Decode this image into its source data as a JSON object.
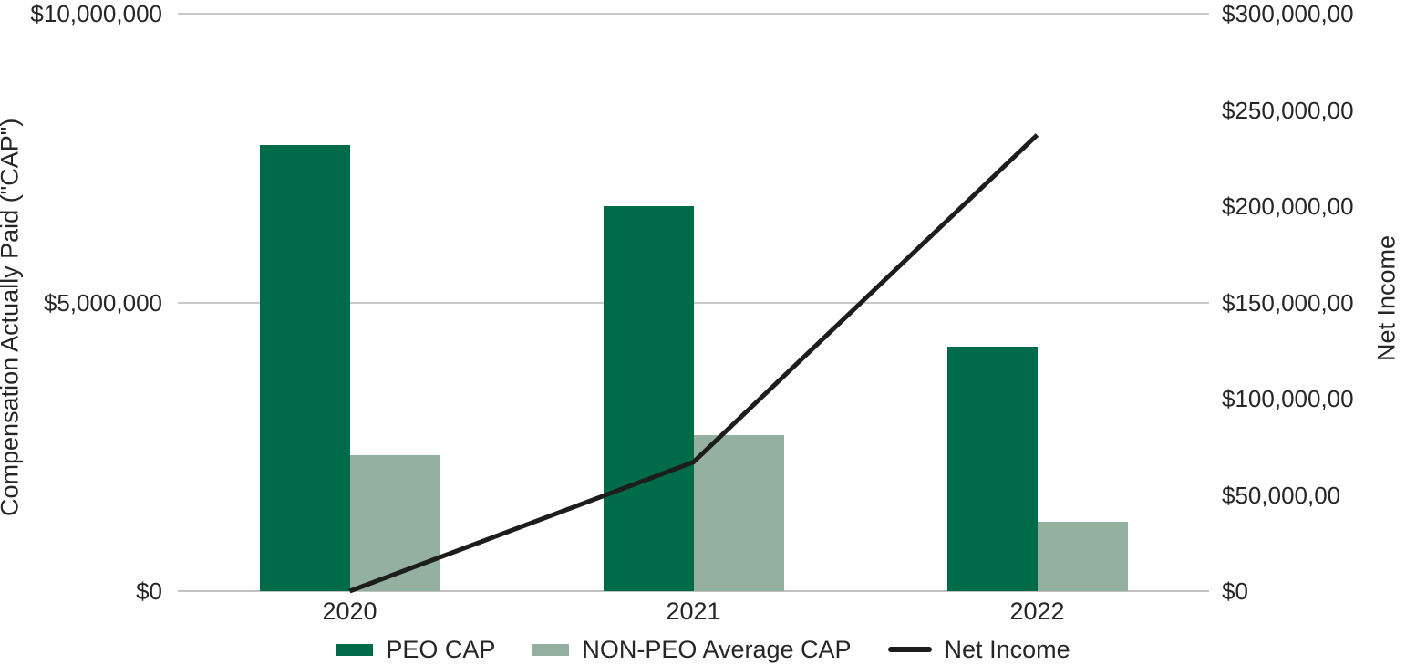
{
  "chart_data": {
    "type": "combo-bar-line",
    "title": "",
    "categories": [
      "2020",
      "2021",
      "2022"
    ],
    "bar_series": [
      {
        "name": "PEO CAP",
        "axis": "left",
        "color": "#006B48",
        "values": [
          7730000,
          6670000,
          4230000
        ]
      },
      {
        "name": "NON-PEO Average CAP",
        "axis": "left",
        "color": "#93B0A1",
        "values": [
          2350000,
          2700000,
          1200000
        ]
      }
    ],
    "line_series": [
      {
        "name": "Net Income",
        "axis": "right",
        "color": "#1D1D1D",
        "values": [
          0,
          67000,
          237000
        ]
      }
    ],
    "left_axis": {
      "title": "Compensation Actually Paid (\"CAP\")",
      "min": 0,
      "max": 10000000,
      "ticks": [
        {
          "value": 0,
          "label": "$0"
        },
        {
          "value": 5000000,
          "label": "$5,000,000"
        },
        {
          "value": 10000000,
          "label": "$10,000,000"
        }
      ],
      "gridlines": true
    },
    "right_axis": {
      "title": "Net Income",
      "min": 0,
      "max": 300000,
      "ticks": [
        {
          "value": 0,
          "label": "$0"
        },
        {
          "value": 50000,
          "label": "$50,000,00"
        },
        {
          "value": 100000,
          "label": "$100,000,00"
        },
        {
          "value": 150000,
          "label": "$150,000,00"
        },
        {
          "value": 200000,
          "label": "$200,000,00"
        },
        {
          "value": 250000,
          "label": "$250,000,00"
        },
        {
          "value": 300000,
          "label": "$300,000,00"
        }
      ],
      "gridlines": false
    },
    "legend": {
      "position": "bottom",
      "items": [
        "PEO CAP",
        "NON-PEO Average CAP",
        "Net Income"
      ]
    },
    "grid_color": "#C9C9C9",
    "text_color": "#262626",
    "background": "#FFFFFF"
  }
}
